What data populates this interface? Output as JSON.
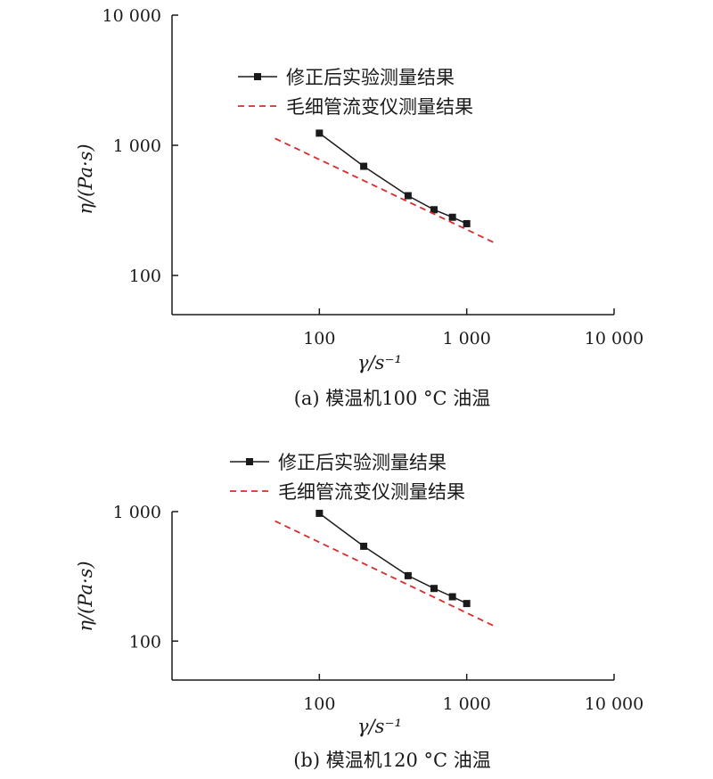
{
  "chart_data": [
    {
      "type": "line",
      "caption": "(a) 模温机100 °C 油温",
      "xlabel": "γ/s⁻¹",
      "ylabel": "η/(Pa·s)",
      "x_scale": "log",
      "y_scale": "log",
      "xlim": [
        10,
        10000
      ],
      "ylim": [
        50,
        10000
      ],
      "x_ticks": [
        100,
        1000,
        10000
      ],
      "x_tick_labels": [
        "100",
        "1 000",
        "10 000"
      ],
      "y_ticks": [
        100,
        1000,
        10000
      ],
      "y_tick_labels": [
        "100",
        "1 000",
        "10 000"
      ],
      "legend_position": "top",
      "series": [
        {
          "name": "修正后实验测量结果",
          "style": "solid-square-markers",
          "color": "#1a1a1a",
          "x": [
            100,
            200,
            400,
            600,
            800,
            1000
          ],
          "y": [
            1240,
            690,
            410,
            320,
            280,
            250
          ]
        },
        {
          "name": "毛细管流变仪测量结果",
          "style": "dashed",
          "color": "#d92b2b",
          "x": [
            50,
            1550
          ],
          "y": [
            1130,
            178
          ]
        }
      ]
    },
    {
      "type": "line",
      "caption": "(b) 模温机120 °C 油温",
      "xlabel": "γ/s⁻¹",
      "ylabel": "η/(Pa·s)",
      "x_scale": "log",
      "y_scale": "log",
      "xlim": [
        10,
        10000
      ],
      "ylim": [
        50,
        1000
      ],
      "x_ticks": [
        100,
        1000,
        10000
      ],
      "x_tick_labels": [
        "100",
        "1 000",
        "10 000"
      ],
      "y_ticks": [
        100,
        1000
      ],
      "y_tick_labels": [
        "100",
        "1 000"
      ],
      "legend_position": "top",
      "series": [
        {
          "name": "修正后实验测量结果",
          "style": "solid-square-markers",
          "color": "#1a1a1a",
          "x": [
            100,
            200,
            400,
            600,
            800,
            1000
          ],
          "y": [
            970,
            540,
            320,
            255,
            220,
            195
          ]
        },
        {
          "name": "毛细管流变仪测量结果",
          "style": "dashed",
          "color": "#d92b2b",
          "x": [
            50,
            1550
          ],
          "y": [
            845,
            130
          ]
        }
      ]
    }
  ]
}
